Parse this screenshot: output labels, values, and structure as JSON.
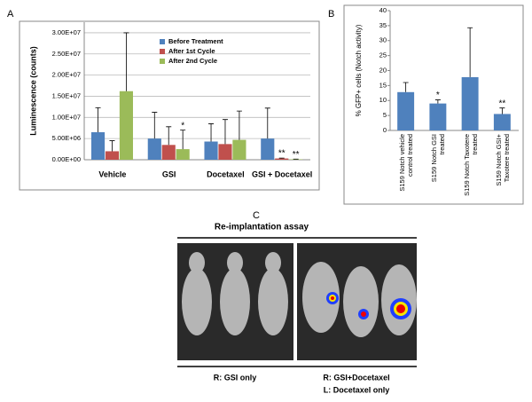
{
  "panels": {
    "a": "A",
    "b": "B",
    "c": "C"
  },
  "chart_data": [
    {
      "type": "bar",
      "y_label": "Luminescence (counts)",
      "categories": [
        "Vehicle",
        "GSI",
        "Docetaxel",
        "GSI + Docetaxel"
      ],
      "series": [
        {
          "name": "Before Treatment",
          "color": "#4f81bd",
          "values": [
            6500000,
            5000000,
            4300000,
            5000000
          ],
          "errors": [
            5800000,
            6200000,
            4200000,
            7200000
          ],
          "significance": [
            null,
            null,
            null,
            null
          ]
        },
        {
          "name": "After 1st Cycle",
          "color": "#c0504d",
          "values": [
            2000000,
            3500000,
            3700000,
            300000
          ],
          "errors": [
            2500000,
            4300000,
            5800000,
            100000
          ],
          "significance": [
            null,
            null,
            null,
            "**"
          ]
        },
        {
          "name": "After 2nd Cycle",
          "color": "#9bbb59",
          "values": [
            16200000,
            2500000,
            4700000,
            100000
          ],
          "errors": [
            13800000,
            4500000,
            6800000,
            50000
          ],
          "significance": [
            null,
            "*",
            null,
            "**"
          ]
        }
      ],
      "ylim": [
        0,
        32500000
      ],
      "yticks": [
        {
          "value": 0,
          "label": "0.00E+00"
        },
        {
          "value": 5000000,
          "label": "5.00E+06"
        },
        {
          "value": 10000000,
          "label": "1.00E+07"
        },
        {
          "value": 15000000,
          "label": "1.50E+07"
        },
        {
          "value": 20000000,
          "label": "2.00E+07"
        },
        {
          "value": 25000000,
          "label": "2.50E+07"
        },
        {
          "value": 30000000,
          "label": "3.00E+07"
        }
      ],
      "grid": true,
      "legend": "upper right"
    },
    {
      "type": "bar",
      "y_label": "% GFP+ cells (Notch activity)",
      "categories": [
        "S159 Notch vehicle control treated",
        "S159 Notch GSI treated",
        "S159 Notch Taxotere treated",
        "S159 Notch GSI+ Taxotere treated"
      ],
      "series": [
        {
          "name": null,
          "color": "#4f81bd",
          "values": [
            12.8,
            9.0,
            17.8,
            5.5
          ],
          "errors": [
            3.2,
            1.2,
            16.5,
            2.0
          ],
          "significance": [
            null,
            "*",
            null,
            "**"
          ]
        }
      ],
      "ylim": [
        0,
        40
      ],
      "yticks": [
        0,
        5,
        10,
        15,
        20,
        25,
        30,
        35,
        40
      ],
      "grid": false
    }
  ],
  "assay": {
    "title": "Re-implantation assay",
    "left_caption": "R:  GSI only",
    "right_caption_1": "R: GSI+Docetaxel",
    "right_caption_2": "L: Docetaxel only"
  }
}
